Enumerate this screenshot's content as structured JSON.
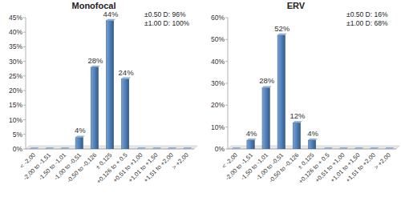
{
  "chart_data": [
    {
      "type": "bar",
      "title": "Monofocal",
      "categories": [
        "< -2,00",
        "-2,00 to -1,51",
        "-1,50 to -1,01",
        "-1,00 to -0,51",
        "-0,50 to -0,126",
        "± 0,125",
        "+0,126 to + 0.5",
        "+0,51 to +1,00",
        "+1,01 to +1,50",
        "+1,51 to +2,00",
        "> +2,00"
      ],
      "values": [
        0,
        0,
        0,
        4,
        28,
        44,
        24,
        0,
        0,
        0,
        0
      ],
      "value_labels": [
        null,
        null,
        null,
        "4%",
        "28%",
        "44%",
        "24%",
        null,
        null,
        null,
        null
      ],
      "data_labels": true,
      "color": "#4f81bd",
      "ylim": [
        0,
        45
      ],
      "yticks": [
        {
          "value": 0,
          "label": "0%"
        },
        {
          "value": 5,
          "label": "5%"
        },
        {
          "value": 10,
          "label": "10%"
        },
        {
          "value": 15,
          "label": "15%"
        },
        {
          "value": 20,
          "label": "20%"
        },
        {
          "value": 25,
          "label": "25%"
        },
        {
          "value": 30,
          "label": "30%"
        },
        {
          "value": 35,
          "label": "35%"
        },
        {
          "value": 40,
          "label": "40%"
        },
        {
          "value": 45,
          "label": "45%"
        }
      ],
      "grid": false,
      "annotations": [
        "±0.50 D: 96%",
        "±1.00 D: 100%"
      ]
    },
    {
      "type": "bar",
      "title": "ERV",
      "categories": [
        "< -2,00",
        "-2,00 to -1,51",
        "-1,50 to -1,01",
        "-1,00 to -0,51",
        "-0,50 to -0,126",
        "± 0,125",
        "+0,126 to + 0.5",
        "+0,51 to +1,00",
        "+1,01 to +1,50",
        "+1,51 to +2,00",
        "> +2,00"
      ],
      "values": [
        0,
        4,
        28,
        52,
        12,
        4,
        0,
        0,
        0,
        0,
        0
      ],
      "value_labels": [
        null,
        "4%",
        "28%",
        "52%",
        "12%",
        "4%",
        null,
        null,
        null,
        null,
        null
      ],
      "data_labels": true,
      "color": "#4f81bd",
      "ylim": [
        0,
        60
      ],
      "yticks": [
        {
          "value": 0,
          "label": "0%"
        },
        {
          "value": 10,
          "label": "10%"
        },
        {
          "value": 20,
          "label": "20%"
        },
        {
          "value": 30,
          "label": "30%"
        },
        {
          "value": 40,
          "label": "40%"
        },
        {
          "value": 50,
          "label": "50%"
        },
        {
          "value": 60,
          "label": "60%"
        }
      ],
      "grid": false,
      "annotations": [
        "±0.50 D: 16%",
        "±1.00 D: 68%"
      ]
    }
  ]
}
